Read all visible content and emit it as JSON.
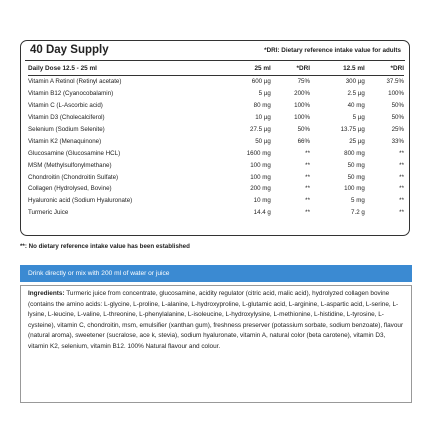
{
  "header": {
    "title": "40 Day Supply",
    "note": "*DRI: Dietary reference intake value for adults"
  },
  "table": {
    "columns": [
      "Daily Dose 12.5 - 25 ml",
      "25 ml",
      "*DRI",
      "12.5 ml",
      "*DRI"
    ],
    "rows": [
      [
        "Vitamin A Retinol (Retinyl acetate)",
        "600 µg",
        "75%",
        "300 µg",
        "37.5%"
      ],
      [
        "Vitamin B12 (Cyanocobalamin)",
        "5 µg",
        "200%",
        "2.5 µg",
        "100%"
      ],
      [
        "Vitamin C (L-Ascorbic acid)",
        "80 mg",
        "100%",
        "40 mg",
        "50%"
      ],
      [
        "Vitamin D3 (Cholecalciferol)",
        "10 µg",
        "100%",
        "5 µg",
        "50%"
      ],
      [
        "Selenium (Sodium Selenite)",
        "27.5 µg",
        "50%",
        "13.75 µg",
        "25%"
      ],
      [
        "Vitamin K2 (Menaquinone)",
        "50 µg",
        "66%",
        "25 µg",
        "33%"
      ],
      [
        "Glucosamine (Glucosamine HCL)",
        "1600 mg",
        "**",
        "800 mg",
        "**"
      ],
      [
        "MSM (Methylsulfonylmethane)",
        "100 mg",
        "**",
        "50 mg",
        "**"
      ],
      [
        "Chondroitin (Chondroitin Sulfate)",
        "100 mg",
        "**",
        "50 mg",
        "**"
      ],
      [
        "Collagen (Hydrolysed, Bovine)",
        "200 mg",
        "**",
        "100 mg",
        "**"
      ],
      [
        "Hyaluronic acid (Sodium Hyaluronate)",
        "10 mg",
        "**",
        "5 mg",
        "**"
      ],
      [
        "Turmeric Juice",
        "14.4 g",
        "**",
        "7.2 g",
        "**"
      ]
    ]
  },
  "footnote": "**: No dietary reference intake value has been established",
  "instruction": "Drink directly or mix with 200 ml of water or juice",
  "ingredients": {
    "label": "Ingredients:",
    "text": "Turmeric juice from concentrate, glucosamine, acidity regulator (citric acid, malic acid), hydrolyzed collagen bovine (contains the amino acids: L-glycine, L-proline, L-alanine, L-hydroxyproline, L-glutamic acid, L-arginine, L-aspartic acid, L-serine, L-lysine, L-leucine, L-valine, L-threonine, L-phenylalanine, L-isoleucine, L-hydroxylysine, L-methionine, L-histidine, L-tyrosine, L-cysteine), vitamin C, chondroitin, msm, emulsifier (xanthan gum), freshness preserver (potassium sorbate, sodium benzoate), flavour (natural aroma), sweetener (sucralose, ace k, stevia), sodium hyaluronate, vitamin A, natural color (beta carotene), vitamin D3, vitamin K2, selenium, vitamin B12. 100% Natural flavour and colour."
  }
}
